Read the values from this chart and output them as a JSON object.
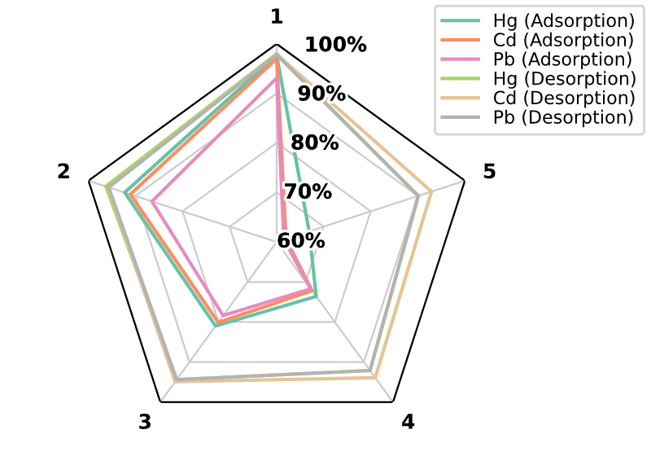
{
  "chart_data": {
    "type": "radar",
    "categories": [
      "1",
      "5",
      "4",
      "3",
      "2"
    ],
    "ylim": [
      60,
      100
    ],
    "yticks": [
      {
        "value": 60,
        "label": "60%"
      },
      {
        "value": 70,
        "label": "70%"
      },
      {
        "value": 80,
        "label": "80%"
      },
      {
        "value": 90,
        "label": "90%"
      },
      {
        "value": 100,
        "label": "100%"
      }
    ],
    "grid": true,
    "legend": "top right",
    "series": [
      {
        "name": "Hg (Adsorption)",
        "color": "#66c2a5",
        "values": [
          97.7,
          66.9,
          73.6,
          81,
          92.3
        ]
      },
      {
        "name": "Cd (Adsorption)",
        "color": "#fc8d62",
        "values": [
          97,
          62,
          72.2,
          80.1,
          91.1
        ]
      },
      {
        "name": "Pb (Adsorption)",
        "color": "#e78ac3",
        "values": [
          93.1,
          61.5,
          71.7,
          78.4,
          86.5
        ]
      },
      {
        "name": "Hg (Desorption)",
        "color": "#a6d854",
        "values": [
          98,
          90.1,
          92.1,
          94.4,
          96.3
        ]
      },
      {
        "name": "Cd (Desorption)",
        "color": "#e5c494",
        "values": [
          97.9,
          92.9,
          93.9,
          94.9,
          95.8
        ]
      },
      {
        "name": "Pb (Desorption)",
        "color": "#b3b3b3",
        "values": [
          97.8,
          90.1,
          92.1,
          94.4,
          95.7
        ]
      }
    ]
  }
}
